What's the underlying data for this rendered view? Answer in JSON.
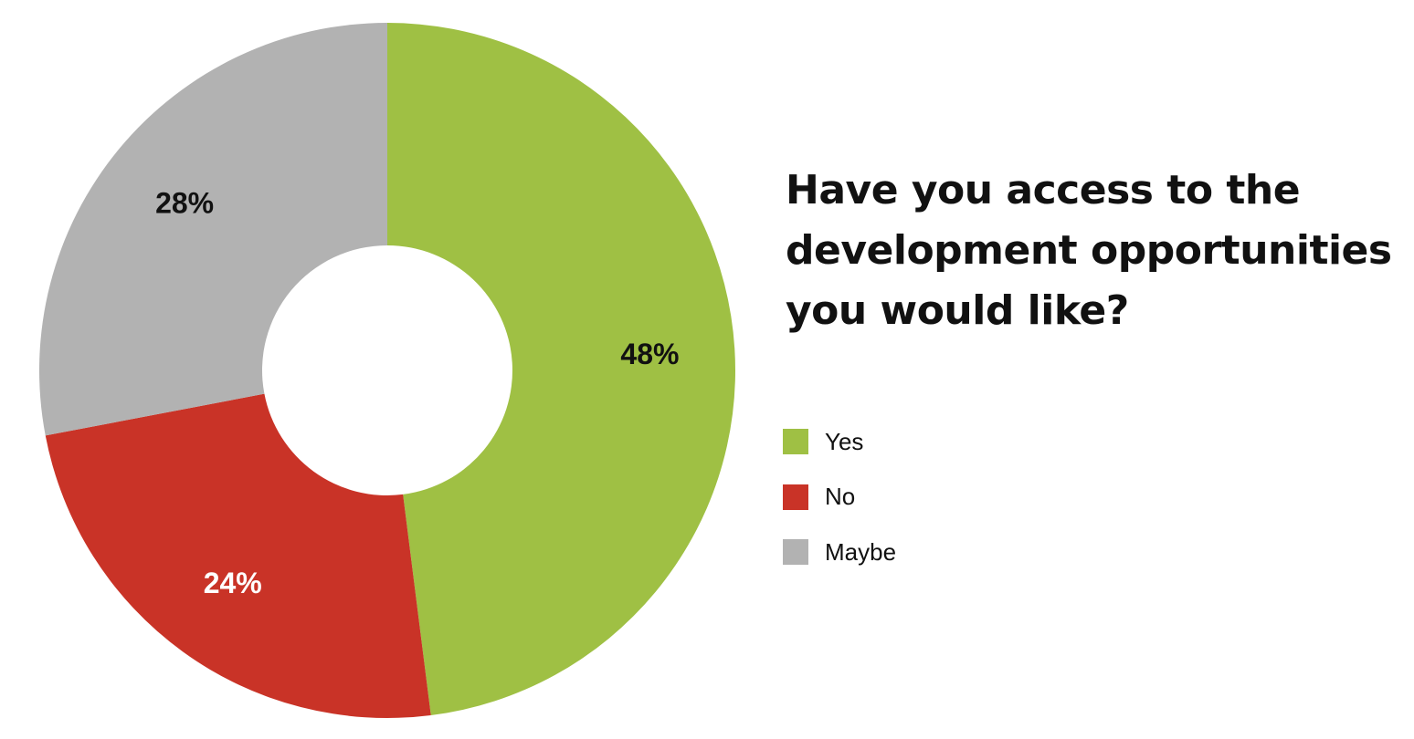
{
  "title": {
    "lines": [
      "Have you access to the",
      "development opportunities",
      "you would like?"
    ]
  },
  "chart_data": {
    "type": "pie",
    "donut": true,
    "title": "Have you access to the development opportunities you would like?",
    "legend_position": "right",
    "categories": [
      "Yes",
      "No",
      "Maybe"
    ],
    "values": [
      48,
      24,
      28
    ],
    "labels": [
      "48%",
      "24%",
      "28%"
    ],
    "colors": [
      "#9fc044",
      "#c93327",
      "#b2b2b2"
    ],
    "label_colors": [
      "#111111",
      "#ffffff",
      "#111111"
    ],
    "start_angle_deg": 0,
    "direction": "clockwise"
  }
}
